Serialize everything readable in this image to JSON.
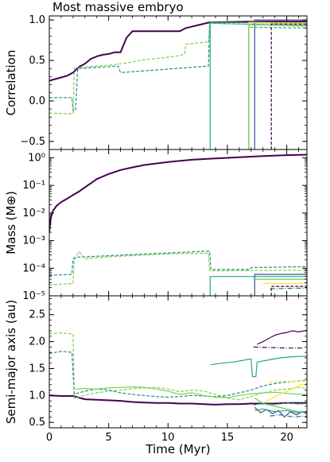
{
  "chart_data": {
    "title": "Most massive embryo",
    "xlabel": "Time (Myr)",
    "xlim": [
      0,
      21.7
    ],
    "xticks": [
      "0",
      "5",
      "10",
      "15",
      "20"
    ],
    "type": "line",
    "panels": [
      {
        "id": "correlation",
        "ylabel": "Correlation",
        "yscale": "linear",
        "ylim": [
          -0.6,
          1.05
        ],
        "yticks": [
          -0.5,
          0.0,
          0.5,
          1.0
        ],
        "yticklabels": [
          "−0.5",
          "0.0",
          "0.5",
          "1.0"
        ],
        "series": [
          {
            "color": "#440154",
            "width": 2.0,
            "dash": "",
            "x": [
              0,
              0.5,
              1.0,
              1.5,
              2.0,
              2.5,
              3.0,
              3.5,
              4.0,
              4.5,
              5.0,
              5.5,
              6.0,
              6.5,
              7.0,
              11.0,
              11.5,
              13.5,
              17.3,
              21.7
            ],
            "y": [
              0.25,
              0.27,
              0.29,
              0.31,
              0.35,
              0.42,
              0.46,
              0.52,
              0.55,
              0.57,
              0.58,
              0.6,
              0.6,
              0.78,
              0.86,
              0.86,
              0.9,
              0.97,
              0.98,
              0.98
            ]
          },
          {
            "color": "#21908d",
            "width": 1.2,
            "dash": "4,2",
            "x": [
              0,
              1.9,
              2.0,
              2.2,
              2.4,
              5.8,
              6.0,
              13.4,
              13.5,
              21.7
            ],
            "y": [
              0.04,
              0.04,
              -0.12,
              -0.12,
              0.4,
              0.43,
              0.35,
              0.43,
              0.96,
              0.93
            ]
          },
          {
            "color": "#7ad151",
            "width": 1.2,
            "dash": "4,2",
            "x": [
              0,
              2.0,
              2.1,
              3.0,
              5.0,
              6.5,
              8.0,
              9.5,
              11.0,
              11.4,
              11.5,
              13.4,
              13.5,
              21.7
            ],
            "y": [
              -0.15,
              -0.16,
              0.41,
              0.42,
              0.44,
              0.47,
              0.51,
              0.53,
              0.56,
              0.58,
              0.7,
              0.73,
              0.96,
              0.92
            ]
          },
          {
            "color": "#22a884",
            "width": 1.2,
            "dash": "",
            "x": [
              13.55,
              13.55,
              21.7
            ],
            "y": [
              -0.6,
              0.97,
              0.96
            ]
          },
          {
            "color": "#3b528b",
            "width": 1.2,
            "dash": "",
            "x": [
              17.3,
              17.3,
              21.7
            ],
            "y": [
              -0.6,
              1.0,
              1.0
            ]
          },
          {
            "color": "#fde725",
            "width": 1.2,
            "dash": "",
            "x": [
              16.8,
              16.8,
              21.7
            ],
            "y": [
              -0.6,
              0.97,
              0.96
            ]
          },
          {
            "color": "#5ec962",
            "width": 1.2,
            "dash": "",
            "x": [
              16.8,
              16.8,
              21.7
            ],
            "y": [
              -0.6,
              0.94,
              0.94
            ]
          },
          {
            "color": "#35b779",
            "width": 1.2,
            "dash": "4,2",
            "x": [
              16.9,
              21.7
            ],
            "y": [
              0.91,
              0.9
            ]
          },
          {
            "color": "#440154",
            "width": 1.2,
            "dash": "4,2",
            "x": [
              18.7,
              18.7,
              21.7
            ],
            "y": [
              -0.6,
              0.95,
              0.95
            ]
          }
        ]
      },
      {
        "id": "mass",
        "ylabel": "Mass (M⊕)",
        "yscale": "log",
        "ylim": [
          1e-05,
          2
        ],
        "yticks": [
          1e-05,
          0.0001,
          0.001,
          0.01,
          0.1,
          1
        ],
        "yticklabels": [
          "10⁻⁵",
          "10⁻⁴",
          "10⁻³",
          "10⁻²",
          "10⁻¹",
          "10⁰"
        ],
        "series": [
          {
            "color": "#440154",
            "width": 2.0,
            "dash": "",
            "x": [
              0,
              0.1,
              0.3,
              0.6,
              1.0,
              1.5,
              2.0,
              2.5,
              3.0,
              3.5,
              4.0,
              5.0,
              6.0,
              7.0,
              8.0,
              10.0,
              12.0,
              14.0,
              16.0,
              18.0,
              20.0,
              21.7
            ],
            "y": [
              0.002,
              0.006,
              0.012,
              0.018,
              0.025,
              0.033,
              0.045,
              0.06,
              0.085,
              0.12,
              0.17,
              0.26,
              0.36,
              0.45,
              0.55,
              0.7,
              0.85,
              0.95,
              1.05,
              1.15,
              1.25,
              1.3
            ]
          },
          {
            "color": "#21908d",
            "width": 1.2,
            "dash": "4,2",
            "x": [
              0,
              1.9,
              2.0,
              2.2,
              13.5,
              13.6,
              16.9,
              17.0,
              21.7
            ],
            "y": [
              5.5e-05,
              6e-05,
              0.00022,
              0.00025,
              0.00042,
              9e-05,
              9e-05,
              0.000105,
              0.000115
            ]
          },
          {
            "color": "#7ad151",
            "width": 1.2,
            "dash": "4,2",
            "x": [
              0,
              2.0,
              2.1,
              2.5,
              3.0,
              5.0,
              8.0,
              11.0,
              13.4,
              13.5,
              21.7
            ],
            "y": [
              2.5e-05,
              2.8e-05,
              0.0002,
              0.0004,
              0.00022,
              0.00026,
              0.0003,
              0.00034,
              0.00035,
              8e-05,
              8.5e-05
            ]
          },
          {
            "color": "#22a884",
            "width": 1.2,
            "dash": "",
            "x": [
              13.55,
              13.55,
              21.7
            ],
            "y": [
              1e-05,
              5e-05,
              5e-05
            ]
          },
          {
            "color": "#3b528b",
            "width": 1.2,
            "dash": "",
            "x": [
              17.3,
              17.3,
              21.7
            ],
            "y": [
              1e-05,
              6e-05,
              6e-05
            ]
          },
          {
            "color": "#fde725",
            "width": 1.2,
            "dash": "",
            "x": [
              18.0,
              21.7
            ],
            "y": [
              2.8e-05,
              2.8e-05
            ]
          },
          {
            "color": "#5ec962",
            "width": 1.2,
            "dash": "",
            "x": [
              17.2,
              21.7
            ],
            "y": [
              4e-05,
              4e-05
            ]
          },
          {
            "color": "#440154",
            "width": 1.2,
            "dash": "4,2",
            "x": [
              18.7,
              18.7,
              21.7
            ],
            "y": [
              1e-05,
              2.2e-05,
              2.2e-05
            ]
          },
          {
            "color": "#30678d",
            "width": 1.2,
            "dash": "6,2,1,2",
            "x": [
              18.6,
              21.7
            ],
            "y": [
              1.8e-05,
              1.9e-05
            ]
          }
        ]
      },
      {
        "id": "semimajor",
        "ylabel": "Semi-major axis (au)",
        "yscale": "linear",
        "ylim": [
          0.4,
          2.85
        ],
        "yticks": [
          0.5,
          1.0,
          1.5,
          2.0,
          2.5
        ],
        "yticklabels": [
          "0.5",
          "1.0",
          "1.5",
          "2.0",
          "2.5"
        ],
        "series": [
          {
            "color": "#440154",
            "width": 2.0,
            "dash": "",
            "x": [
              0,
              1,
              2,
              3,
              4,
              5,
              6,
              7,
              8,
              9,
              10,
              11,
              12,
              13,
              14,
              15,
              16,
              17,
              18,
              19,
              20,
              21,
              21.7
            ],
            "y": [
              1.0,
              0.99,
              0.99,
              0.93,
              0.92,
              0.91,
              0.9,
              0.88,
              0.87,
              0.86,
              0.86,
              0.85,
              0.85,
              0.84,
              0.83,
              0.84,
              0.84,
              0.85,
              0.85,
              0.85,
              0.86,
              0.86,
              0.86
            ]
          },
          {
            "color": "#7ad151",
            "width": 1.2,
            "dash": "4,2",
            "x": [
              0,
              1.0,
              2.0,
              2.1,
              3,
              4,
              5,
              6,
              7,
              8,
              9,
              10,
              11,
              12,
              13,
              14,
              15,
              16,
              17,
              18,
              19,
              20,
              21,
              21.7
            ],
            "y": [
              2.15,
              2.16,
              2.14,
              0.95,
              1.0,
              1.05,
              1.08,
              1.1,
              1.13,
              1.14,
              1.15,
              1.12,
              1.07,
              1.1,
              1.08,
              1.02,
              0.95,
              0.92,
              0.98,
              1.05,
              1.1,
              1.12,
              1.15,
              1.13
            ]
          },
          {
            "color": "#21908d",
            "width": 1.2,
            "dash": "4,2",
            "x": [
              0,
              1.0,
              1.9,
              2.1,
              2.5,
              3,
              4,
              5,
              6,
              7,
              8,
              9,
              10,
              11,
              12,
              13,
              14,
              15,
              16,
              17,
              18,
              19,
              20,
              21,
              21.7
            ],
            "y": [
              1.78,
              1.82,
              1.8,
              1.02,
              1.05,
              1.08,
              1.12,
              1.1,
              1.05,
              1.02,
              1.0,
              0.98,
              0.97,
              0.98,
              1.0,
              0.99,
              0.98,
              1.0,
              1.05,
              1.1,
              1.18,
              1.22,
              1.25,
              1.27,
              1.28
            ]
          },
          {
            "color": "#7ad151",
            "width": 1.2,
            "dash": "",
            "x": [
              2.2,
              3,
              4,
              5,
              6,
              7,
              8,
              9,
              10,
              11,
              12,
              13,
              14,
              15,
              16,
              17,
              18,
              19,
              20,
              21,
              21.7
            ],
            "y": [
              1.12,
              1.13,
              1.12,
              1.14,
              1.15,
              1.16,
              1.15,
              1.12,
              1.08,
              1.02,
              1.05,
              1.0,
              0.97,
              0.96,
              1.0,
              1.03,
              1.05,
              1.06,
              1.04,
              1.02,
              1.02
            ]
          },
          {
            "color": "#22a884",
            "width": 1.2,
            "dash": "",
            "x": [
              13.6,
              14.5,
              15.5,
              16.5,
              17.0,
              17.1,
              17.4,
              17.5,
              18.5,
              19.5,
              20.5,
              21.7
            ],
            "y": [
              1.57,
              1.6,
              1.62,
              1.66,
              1.68,
              1.35,
              1.35,
              1.62,
              1.66,
              1.7,
              1.72,
              1.73
            ]
          },
          {
            "color": "#440154",
            "width": 1.2,
            "dash": "",
            "x": [
              17.5,
              18.0,
              18.5,
              19.0,
              19.5,
              20.0,
              20.5,
              21.0,
              21.7
            ],
            "y": [
              1.95,
              2.0,
              2.06,
              2.12,
              2.15,
              2.17,
              2.2,
              2.18,
              2.21
            ]
          },
          {
            "color": "#440154",
            "width": 1.2,
            "dash": "6,2,1,2",
            "x": [
              17.2,
              18.5,
              20.0,
              21.3
            ],
            "y": [
              1.9,
              1.89,
              1.88,
              1.88
            ]
          },
          {
            "color": "#fde725",
            "width": 1.2,
            "dash": "",
            "x": [
              18.2,
              19.0,
              20.0,
              21.0,
              21.7
            ],
            "y": [
              0.88,
              0.98,
              1.08,
              1.18,
              1.22
            ]
          },
          {
            "color": "#fde725",
            "width": 1.2,
            "dash": "4,2",
            "x": [
              18.5,
              19.5,
              20.5,
              21.7
            ],
            "y": [
              1.25,
              1.26,
              1.26,
              1.27
            ]
          },
          {
            "color": "#5ec962",
            "width": 1.2,
            "dash": "",
            "x": [
              17.3,
              18,
              19,
              20,
              21,
              21.7
            ],
            "y": [
              0.95,
              0.85,
              0.8,
              0.75,
              0.7,
              0.68
            ]
          },
          {
            "color": "#3b528b",
            "width": 1.2,
            "dash": "",
            "x": [
              17.3,
              17.8,
              18.3,
              18.8,
              19.3,
              19.8,
              20.3,
              20.8,
              21.3,
              21.7
            ],
            "y": [
              0.78,
              0.68,
              0.74,
              0.66,
              0.72,
              0.6,
              0.7,
              0.64,
              0.7,
              0.66
            ]
          },
          {
            "color": "#22a884",
            "width": 1.2,
            "dash": "",
            "x": [
              17.3,
              18,
              19,
              20,
              21,
              21.7
            ],
            "y": [
              0.72,
              0.75,
              0.7,
              0.72,
              0.68,
              0.7
            ]
          },
          {
            "color": "#35b779",
            "width": 1.2,
            "dash": "4,2",
            "x": [
              17.2,
              18,
              19,
              20,
              21,
              21.7
            ],
            "y": [
              0.82,
              0.85,
              0.83,
              0.86,
              0.84,
              0.85
            ]
          },
          {
            "color": "#30678d",
            "width": 1.2,
            "dash": "6,2,1,2",
            "x": [
              18.6,
              19.5,
              20.5,
              21.7
            ],
            "y": [
              0.62,
              0.64,
              0.6,
              0.62
            ]
          }
        ]
      }
    ]
  }
}
